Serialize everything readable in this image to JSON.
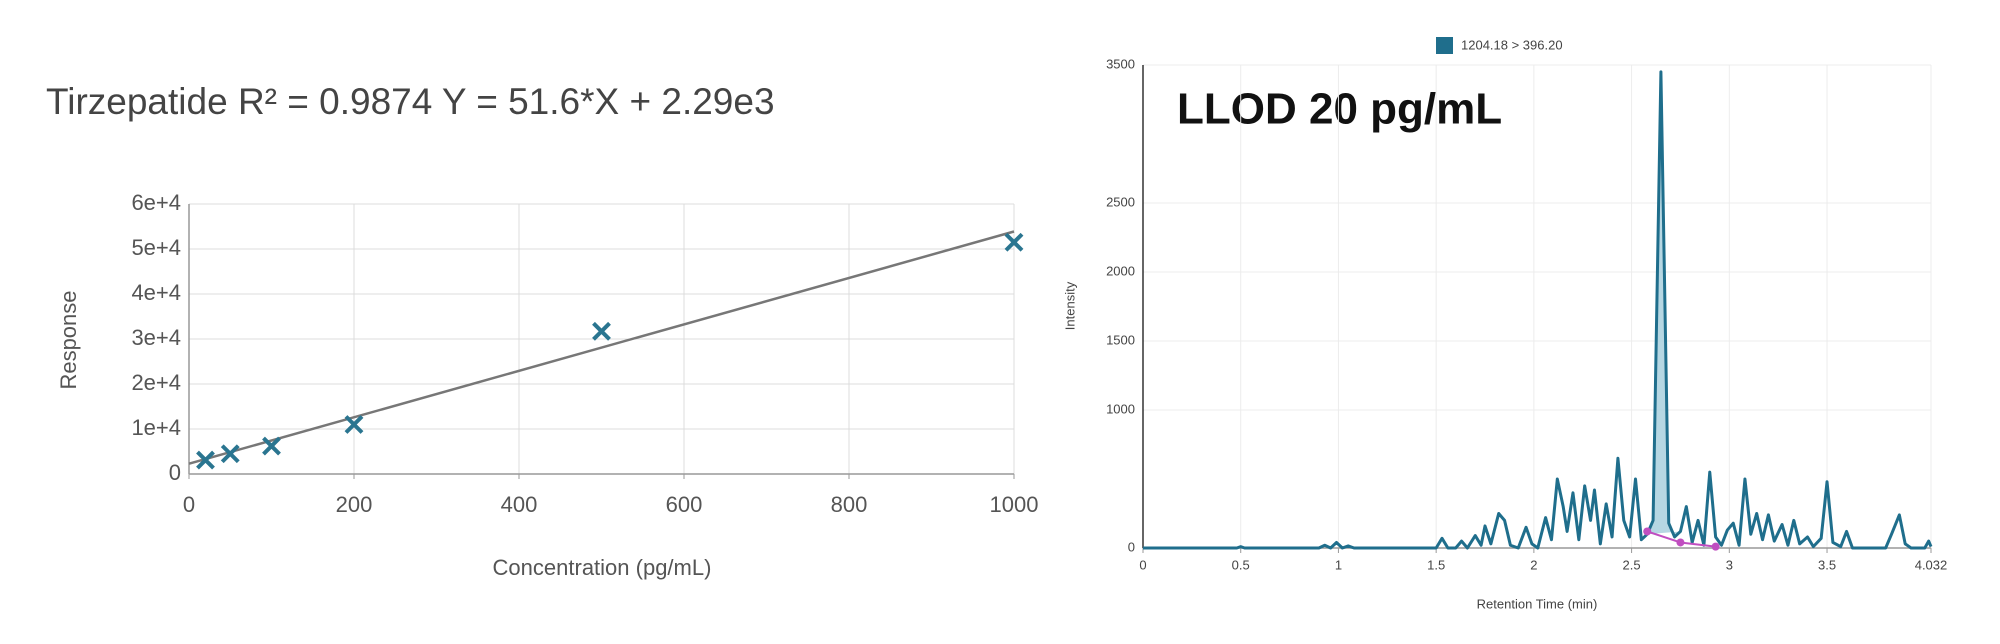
{
  "chart_data": [
    {
      "type": "scatter",
      "title": "Tirzepatide R² = 0.9874 Y = 51.6*X + 2.29e3",
      "x_label": "Concentration (pg/mL)",
      "y_label": "Response",
      "xlim": [
        0,
        1000
      ],
      "xticks": [
        0,
        200,
        400,
        600,
        800,
        1000
      ],
      "ylim": [
        0,
        60000
      ],
      "yticks": [
        0,
        {
          "value": 10000,
          "label": "1e+4"
        },
        {
          "value": 20000,
          "label": "2e+4"
        },
        {
          "value": 30000,
          "label": "3e+4"
        },
        {
          "value": 40000,
          "label": "4e+4"
        },
        {
          "value": 50000,
          "label": "5e+4"
        },
        {
          "value": 60000,
          "label": "6e+4"
        }
      ],
      "grid": true,
      "series": [
        {
          "type": "line",
          "color": "#777777",
          "x": [
            0,
            1000
          ],
          "values": [
            2290,
            53890
          ]
        },
        {
          "type": "scatter",
          "color": "#2a7590",
          "x": [
            20,
            50,
            100,
            200,
            500,
            1000
          ],
          "values": [
            3100,
            4500,
            6200,
            11000,
            31700,
            51500
          ]
        }
      ]
    },
    {
      "type": "line",
      "annotation": "LLOD 20 pg/mL",
      "x_label": "Retention Time (min)",
      "y_label": "Intensity",
      "xlim": [
        0,
        4.032
      ],
      "xticks": [
        0,
        0.5,
        1,
        1.5,
        2,
        2.5,
        3,
        3.5,
        4.032
      ],
      "ylim": [
        0,
        3500
      ],
      "yticks": [
        0,
        1000,
        1500,
        2000,
        2500,
        3500
      ],
      "grid": true,
      "legend": "top",
      "series": [
        {
          "type": "line",
          "name": "1204.18 > 396.20",
          "color": "#1f6e8c",
          "peak_fill": "#a9d0de",
          "x": [
            0,
            0.48,
            0.5,
            0.52,
            0.9,
            0.93,
            0.96,
            0.99,
            1.02,
            1.05,
            1.08,
            1.5,
            1.53,
            1.56,
            1.6,
            1.63,
            1.66,
            1.7,
            1.73,
            1.75,
            1.78,
            1.82,
            1.85,
            1.88,
            1.92,
            1.96,
            1.99,
            2.02,
            2.06,
            2.09,
            2.12,
            2.15,
            2.17,
            2.2,
            2.23,
            2.26,
            2.29,
            2.31,
            2.34,
            2.37,
            2.4,
            2.43,
            2.46,
            2.49,
            2.52,
            2.55,
            2.58,
            2.61,
            2.65,
            2.69,
            2.72,
            2.75,
            2.78,
            2.81,
            2.84,
            2.87,
            2.9,
            2.93,
            2.96,
            2.99,
            3.02,
            3.05,
            3.08,
            3.11,
            3.14,
            3.17,
            3.2,
            3.23,
            3.27,
            3.3,
            3.33,
            3.36,
            3.4,
            3.43,
            3.47,
            3.5,
            3.53,
            3.57,
            3.6,
            3.63,
            3.8,
            3.83,
            3.87,
            3.9,
            3.93,
            4,
            4.02,
            4.032
          ],
          "values": [
            0,
            0,
            10,
            0,
            0,
            20,
            0,
            40,
            0,
            15,
            0,
            0,
            70,
            0,
            0,
            50,
            0,
            90,
            20,
            160,
            30,
            250,
            200,
            20,
            0,
            150,
            30,
            0,
            220,
            60,
            500,
            300,
            120,
            400,
            60,
            450,
            200,
            420,
            30,
            320,
            80,
            650,
            200,
            80,
            500,
            60,
            100,
            200,
            3450,
            180,
            80,
            120,
            300,
            40,
            200,
            20,
            550,
            80,
            20,
            130,
            180,
            20,
            500,
            100,
            250,
            60,
            240,
            50,
            170,
            20,
            200,
            30,
            80,
            10,
            70,
            480,
            40,
            10,
            120,
            0,
            0,
            100,
            240,
            30,
            0,
            0,
            50,
            10
          ]
        },
        {
          "type": "line",
          "markers": true,
          "color": "#c04ec0",
          "x": [
            2.58,
            2.75,
            2.93
          ],
          "values": [
            120,
            40,
            10
          ]
        }
      ]
    }
  ]
}
